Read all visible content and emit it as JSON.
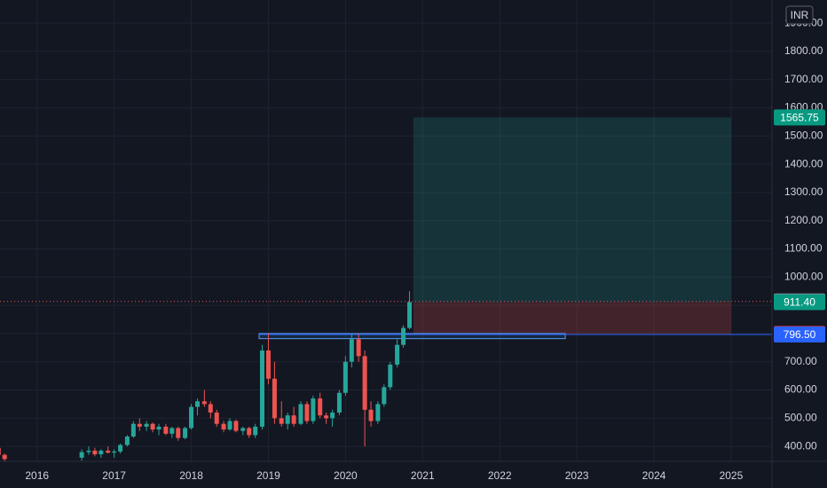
{
  "chart_data": {
    "type": "candlestick",
    "currency": "INR",
    "up_color": "#26a69a",
    "down_color": "#ef5350",
    "grid": true,
    "xlim": [
      2015.52,
      2025.53
    ],
    "xticks": [
      2016,
      2017,
      2018,
      2019,
      2020,
      2021,
      2022,
      2023,
      2024,
      2025
    ],
    "ylim": [
      347,
      1982
    ],
    "yticks": [
      {
        "value": 400,
        "label": "400.00"
      },
      {
        "value": 500,
        "label": "500.00"
      },
      {
        "value": 600,
        "label": "600.00"
      },
      {
        "value": 700,
        "label": "700.00"
      },
      {
        "value": 800,
        "label": "800.00"
      },
      {
        "value": 900,
        "label": "900.00"
      },
      {
        "value": 1000,
        "label": "1000.00"
      },
      {
        "value": 1100,
        "label": "1100.00"
      },
      {
        "value": 1200,
        "label": "1200.00"
      },
      {
        "value": 1300,
        "label": "1300.00"
      },
      {
        "value": 1400,
        "label": "1400.00"
      },
      {
        "value": 1500,
        "label": "1500.00"
      },
      {
        "value": 1600,
        "label": "1600.00"
      },
      {
        "value": 1700,
        "label": "1700.00"
      },
      {
        "value": 1800,
        "label": "1800.00"
      },
      {
        "value": 1900,
        "label": "1900.00"
      }
    ],
    "x": [
      2015.5,
      2015.58,
      2016.58,
      2016.67,
      2016.75,
      2016.83,
      2016.92,
      2017.0,
      2017.08,
      2017.17,
      2017.25,
      2017.33,
      2017.42,
      2017.5,
      2017.58,
      2017.67,
      2017.75,
      2017.83,
      2017.92,
      2018.0,
      2018.08,
      2018.17,
      2018.25,
      2018.33,
      2018.42,
      2018.5,
      2018.58,
      2018.67,
      2018.75,
      2018.83,
      2018.92,
      2019.0,
      2019.08,
      2019.17,
      2019.25,
      2019.33,
      2019.42,
      2019.5,
      2019.58,
      2019.67,
      2019.75,
      2019.83,
      2019.92,
      2020.0,
      2020.08,
      2020.17,
      2020.25,
      2020.33,
      2020.42,
      2020.5,
      2020.58,
      2020.67,
      2020.75,
      2020.83
    ],
    "open": [
      395,
      370,
      360,
      380,
      385,
      372,
      385,
      378,
      382,
      405,
      435,
      480,
      470,
      480,
      460,
      470,
      445,
      465,
      430,
      465,
      540,
      560,
      550,
      520,
      480,
      460,
      490,
      455,
      465,
      440,
      470,
      740,
      640,
      500,
      480,
      510,
      480,
      550,
      490,
      570,
      510,
      500,
      520,
      590,
      700,
      780,
      720,
      530,
      490,
      550,
      610,
      690,
      760,
      820
    ],
    "high": [
      400,
      375,
      390,
      400,
      395,
      390,
      400,
      390,
      410,
      440,
      490,
      500,
      490,
      485,
      480,
      480,
      470,
      470,
      470,
      550,
      570,
      600,
      560,
      530,
      490,
      500,
      495,
      470,
      470,
      480,
      760,
      800,
      700,
      560,
      520,
      540,
      560,
      560,
      580,
      590,
      520,
      530,
      600,
      720,
      800,
      800,
      740,
      560,
      560,
      620,
      700,
      780,
      830,
      950
    ],
    "low": [
      350,
      348,
      350,
      370,
      365,
      360,
      375,
      360,
      375,
      400,
      430,
      455,
      455,
      450,
      440,
      440,
      430,
      420,
      425,
      460,
      510,
      540,
      500,
      470,
      450,
      455,
      450,
      440,
      430,
      430,
      460,
      620,
      480,
      470,
      460,
      470,
      475,
      480,
      480,
      500,
      480,
      470,
      510,
      580,
      680,
      700,
      400,
      470,
      480,
      540,
      600,
      680,
      750,
      815
    ],
    "close": [
      370,
      355,
      380,
      385,
      372,
      385,
      378,
      382,
      405,
      435,
      480,
      470,
      480,
      460,
      470,
      445,
      465,
      430,
      465,
      540,
      560,
      550,
      520,
      480,
      460,
      490,
      455,
      465,
      440,
      470,
      740,
      640,
      500,
      480,
      510,
      480,
      550,
      490,
      570,
      510,
      500,
      520,
      590,
      700,
      780,
      720,
      530,
      490,
      550,
      610,
      690,
      760,
      820,
      911.4
    ],
    "last_price": 913.85,
    "position": {
      "target": 1565.75,
      "entry": 911.4,
      "entry_label": "911.40",
      "stop": 798.45,
      "x_range": [
        2020.88,
        2025.0
      ]
    },
    "zone": {
      "low": 782,
      "high": 800,
      "x_range": [
        2018.88,
        2022.85
      ]
    },
    "hline": {
      "value": 796.5,
      "label": "796.50",
      "x_start": 2018.88
    }
  }
}
